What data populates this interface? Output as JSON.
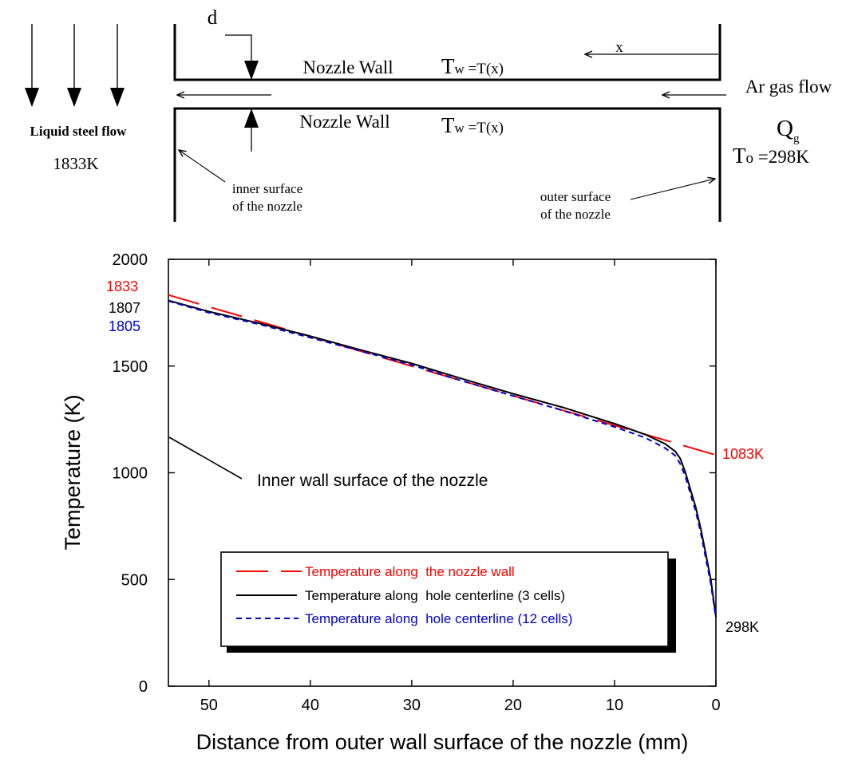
{
  "schematic": {
    "d_label": "d",
    "x_label": "x",
    "wall_top_label": "Nozzle Wall",
    "wall_bottom_label": "Nozzle Wall",
    "tw_top": {
      "main": "T",
      "sub": "w",
      "rest": " =T(x)"
    },
    "tw_bottom": {
      "main": "T",
      "sub": "w",
      "rest": " =T(x)"
    },
    "steel_flow_label": "Liquid steel flow",
    "steel_temp_label": "1833K",
    "ar_flow_label": "Ar gas flow",
    "qg": {
      "main": "Q",
      "sub": "g"
    },
    "to": {
      "main": "T",
      "sub": "o",
      "rest": " =298K"
    },
    "inner_surface_label": [
      "inner surface",
      "of the nozzle"
    ],
    "outer_surface_label": [
      "outer surface",
      "of the nozzle"
    ]
  },
  "chart_data": {
    "type": "line",
    "xlabel": "Distance from outer wall surface of the nozzle (mm)",
    "ylabel": "Temperature (K)",
    "xlim": [
      54,
      0
    ],
    "ylim": [
      0,
      2000
    ],
    "x_ticks": [
      "50",
      "40",
      "30",
      "20",
      "10",
      "0"
    ],
    "y_ticks": [
      "0",
      "500",
      "1000",
      "1500",
      "2000"
    ],
    "x_tick_values": [
      50,
      40,
      30,
      20,
      10,
      0
    ],
    "y_tick_values": [
      0,
      500,
      1000,
      1500,
      2000
    ],
    "series": [
      {
        "name": "Temperature along  the nozzle wall",
        "color": "#ff0000",
        "style": "long-dash",
        "x": [
          54,
          0
        ],
        "y": [
          1833,
          1083
        ]
      },
      {
        "name": "Temperature along  hole centerline (3 cells)",
        "color": "#000000",
        "style": "solid",
        "x": [
          54,
          50,
          45,
          40,
          35,
          30,
          25,
          20,
          15,
          10,
          7,
          5,
          4,
          3.5,
          3,
          2.5,
          2,
          1.5,
          1,
          0.5,
          0
        ],
        "y": [
          1807,
          1755,
          1700,
          1640,
          1575,
          1512,
          1440,
          1370,
          1305,
          1230,
          1180,
          1135,
          1100,
          1065,
          1000,
          920,
          840,
          740,
          620,
          500,
          325
        ]
      },
      {
        "name": "Temperature along  hole centerline (12 cells)",
        "color": "#0000cc",
        "style": "short-dash",
        "x": [
          54,
          50,
          45,
          40,
          35,
          30,
          25,
          20,
          15,
          10,
          7,
          5,
          4,
          3.5,
          3,
          2.5,
          2,
          1.5,
          1,
          0.5,
          0
        ],
        "y": [
          1805,
          1750,
          1695,
          1633,
          1570,
          1505,
          1430,
          1360,
          1290,
          1215,
          1165,
          1115,
          1080,
          1040,
          980,
          900,
          820,
          720,
          600,
          480,
          320
        ]
      }
    ],
    "annotations": {
      "left_1833": "1833",
      "left_1807": "1807",
      "left_1805": "1805",
      "right_1083": "1083K",
      "right_298": "298K",
      "inner_wall": "Inner wall surface of the nozzle"
    },
    "legend_position": "bottom-center",
    "grid": false
  }
}
